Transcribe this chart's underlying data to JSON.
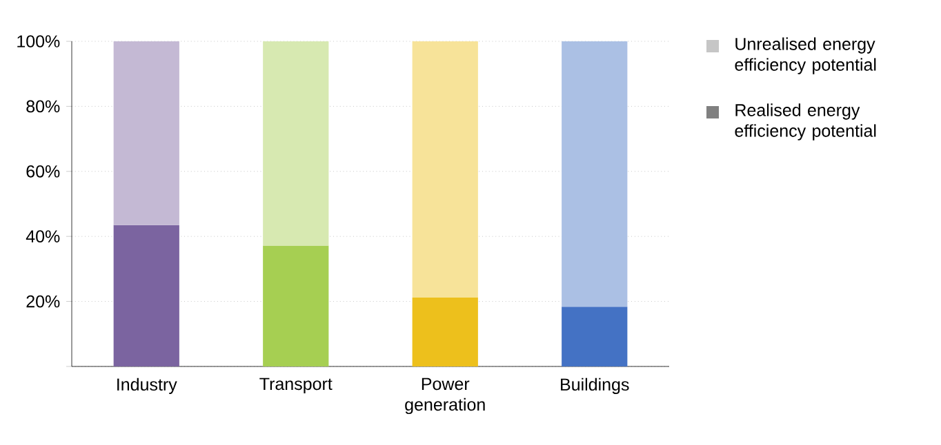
{
  "chart_data": {
    "type": "bar",
    "stacked": true,
    "categories": [
      "Industry",
      "Transport",
      "Power generation",
      "Buildings"
    ],
    "series": [
      {
        "name": "Realised energy efficiency potential",
        "colors": [
          "#7b64a0",
          "#a6cf52",
          "#edc01c",
          "#4472c4"
        ],
        "values": [
          43.5,
          37.2,
          21.2,
          18.4
        ]
      },
      {
        "name": "Unrealised energy efficiency potential",
        "colors": [
          "#c4b9d4",
          "#d7e9b1",
          "#f7e399",
          "#abc0e4"
        ],
        "values": [
          56.5,
          62.8,
          78.8,
          81.6
        ]
      }
    ],
    "ylim": [
      0,
      100
    ],
    "yticks": [
      {
        "value": 0,
        "label": null
      },
      {
        "value": 20,
        "label": "20%"
      },
      {
        "value": 40,
        "label": "40%"
      },
      {
        "value": 60,
        "label": "60%"
      },
      {
        "value": 80,
        "label": "80%"
      },
      {
        "value": 100,
        "label": "100%"
      }
    ],
    "grid": "y",
    "legend": "right"
  }
}
